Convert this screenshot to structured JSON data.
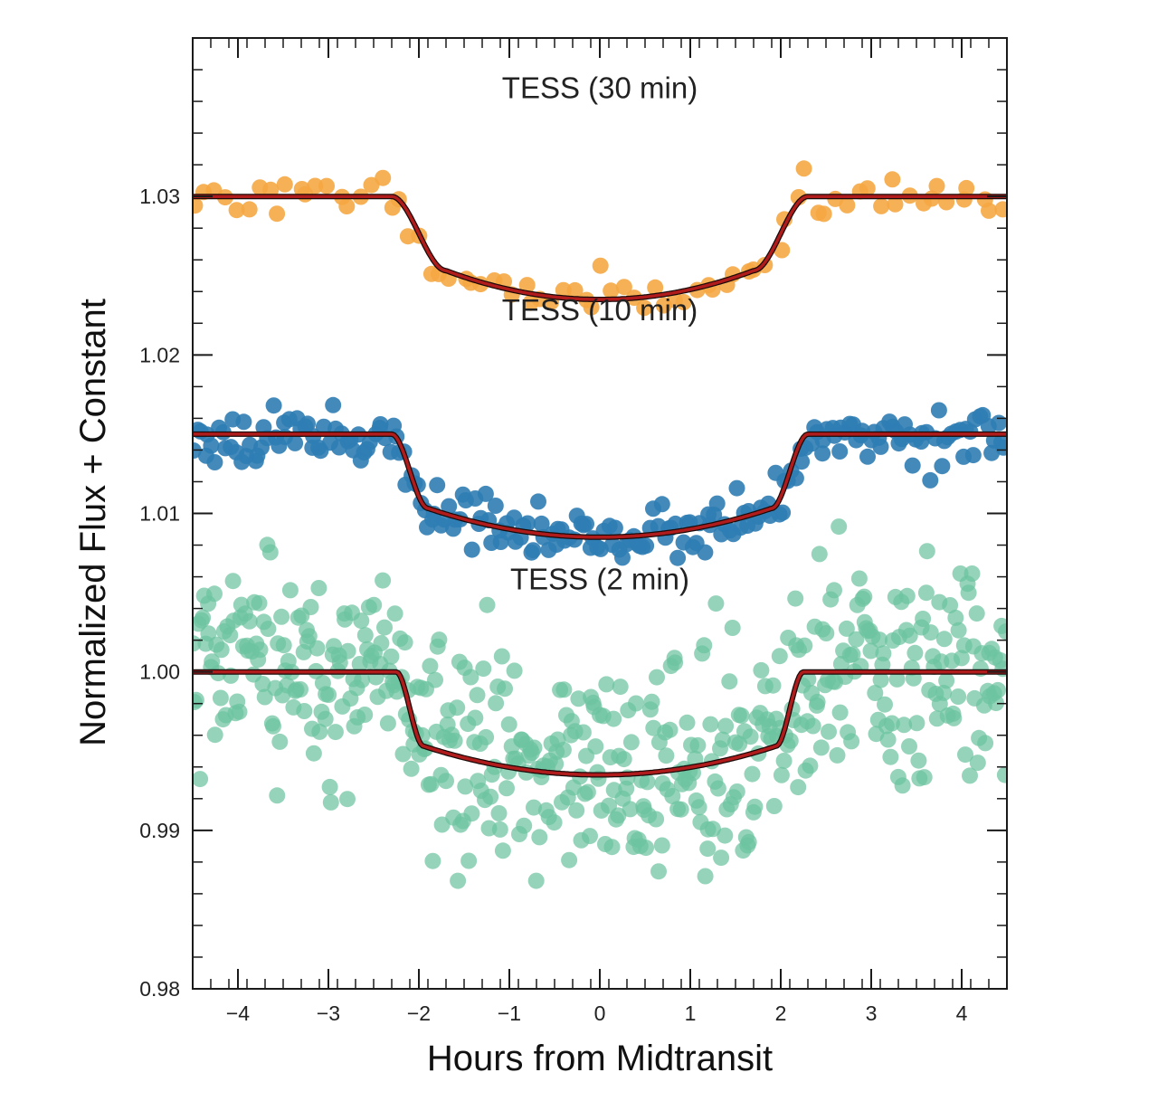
{
  "chart_data": {
    "type": "scatter",
    "title": "",
    "xlabel": "Hours from Midtransit",
    "ylabel": "Normalized Flux + Constant",
    "xlim": [
      -4.5,
      4.5
    ],
    "ylim": [
      0.98,
      1.04
    ],
    "x_ticks": [
      -4,
      -3,
      -2,
      -1,
      0,
      1,
      2,
      3,
      4
    ],
    "x_tick_labels": [
      "−4",
      "−3",
      "−2",
      "−1",
      "0",
      "1",
      "2",
      "3",
      "4"
    ],
    "y_ticks": [
      0.98,
      0.99,
      1.0,
      1.01,
      1.02,
      1.03
    ],
    "y_tick_labels": [
      "0.98",
      "0.99",
      "1.00",
      "1.01",
      "1.02",
      "1.03"
    ],
    "grid": false,
    "legend": "none",
    "series": [
      {
        "name": "TESS (30 min)",
        "color": "#f5a742",
        "baseline": 1.03,
        "transit_depth": 0.0065,
        "ingress_start": -2.3,
        "ingress_end": -1.7,
        "egress_start": 1.7,
        "egress_end": 2.3,
        "n_points": 80,
        "scatter": 0.0006,
        "seed": 11
      },
      {
        "name": "TESS (10 min)",
        "color": "#2f7db4",
        "baseline": 1.015,
        "transit_depth": 0.0065,
        "ingress_start": -2.3,
        "ingress_end": -1.9,
        "egress_start": 1.9,
        "egress_end": 2.3,
        "n_points": 230,
        "scatter": 0.0008,
        "seed": 23
      },
      {
        "name": "TESS (2 min)",
        "color": "#6cc4a0",
        "baseline": 1.0,
        "transit_depth": 0.0065,
        "ingress_start": -2.25,
        "ingress_end": -1.95,
        "egress_start": 1.95,
        "egress_end": 2.25,
        "n_points": 520,
        "scatter": 0.0033,
        "seed": 37
      }
    ],
    "model_color": "#b01c1c",
    "panel_labels": [
      {
        "text": "TESS (30 min)",
        "x": 0,
        "y": 1.0362
      },
      {
        "text": "TESS (10 min)",
        "x": 0,
        "y": 1.0222
      },
      {
        "text": "TESS (2 min)",
        "x": 0,
        "y": 1.0052
      }
    ]
  }
}
